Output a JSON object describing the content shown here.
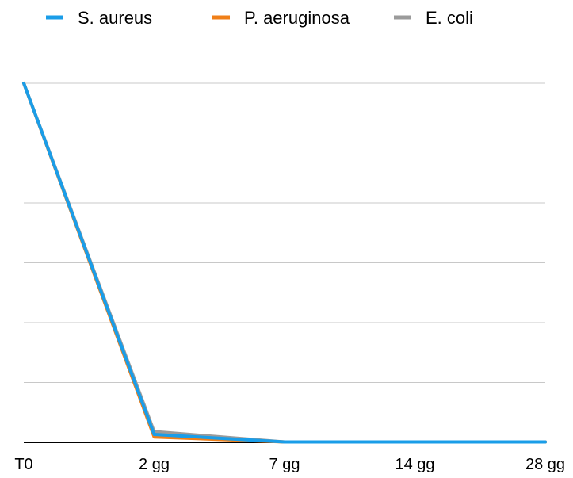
{
  "chart_data": {
    "type": "line",
    "categories": [
      "T0",
      "2 gg",
      "7 gg",
      "14 gg",
      "28 gg"
    ],
    "series": [
      {
        "name": "S. aureus",
        "values": [
          100,
          2.2,
          0.1,
          0.1,
          0.1
        ],
        "color": "#1a9de8"
      },
      {
        "name": "P. aeruginosa",
        "values": [
          100,
          1.5,
          0.1,
          0.1,
          0.1
        ],
        "color": "#f07f18"
      },
      {
        "name": "E. coli",
        "values": [
          100,
          3.0,
          0.1,
          0.1,
          0.1
        ],
        "color": "#9b9b9b"
      }
    ],
    "draw_order": [
      "E. coli",
      "P. aeruginosa",
      "S. aureus"
    ],
    "ylim": [
      0,
      100
    ],
    "y_gridlines": 6,
    "grid": true,
    "legend_position": "top",
    "y_tick_labels_shown": false,
    "colors": {
      "grid": "#c8c8c8",
      "axis": "#000000"
    }
  }
}
